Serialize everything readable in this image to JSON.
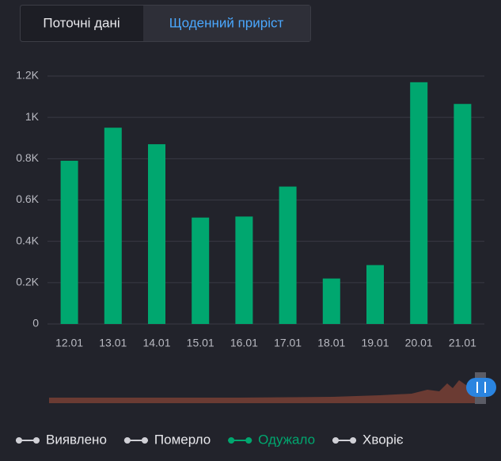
{
  "tabs": [
    "Поточні дані",
    "Щоденний приріст"
  ],
  "chart_data": {
    "type": "bar",
    "categories": [
      "12.01",
      "13.01",
      "14.01",
      "15.01",
      "16.01",
      "17.01",
      "18.01",
      "19.01",
      "20.01",
      "21.01"
    ],
    "series": [
      {
        "name": "Одужало",
        "color": "#00a76f",
        "values": [
          790,
          950,
          870,
          515,
          520,
          665,
          220,
          285,
          1170,
          1065
        ]
      }
    ],
    "legend_items": [
      {
        "name": "Виявлено",
        "color": "#d0d0d6"
      },
      {
        "name": "Померло",
        "color": "#d0d0d6"
      },
      {
        "name": "Одужало",
        "color": "#00a76f"
      },
      {
        "name": "Хворіє",
        "color": "#d0d0d6"
      }
    ],
    "ylim": [
      0,
      1200
    ],
    "yticks": [
      0,
      {
        "value": 200,
        "label": "0.2K"
      },
      {
        "value": 400,
        "label": "0.4K"
      },
      {
        "value": 600,
        "label": "0.6K"
      },
      {
        "value": 800,
        "label": "0.8K"
      },
      {
        "value": 1000,
        "label": "1K"
      },
      {
        "value": 1200,
        "label": "1.2K"
      }
    ],
    "grid": true
  }
}
